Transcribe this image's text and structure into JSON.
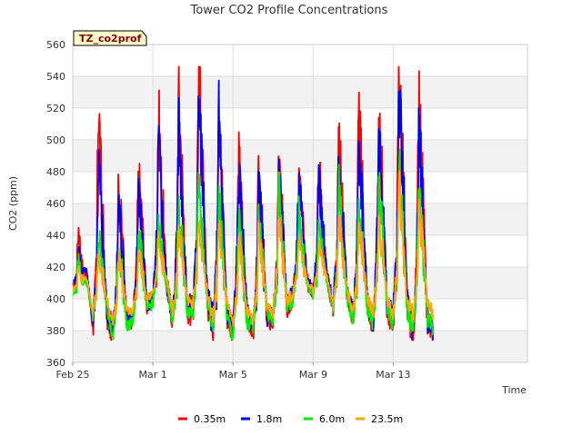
{
  "chart_data": {
    "type": "line",
    "title": "Tower CO2 Profile Concentrations",
    "xlabel": "Time",
    "ylabel": "CO2 (ppm)",
    "badge": "TZ_co2prof",
    "ylim": [
      360,
      560
    ],
    "y_ticks": [
      360,
      380,
      400,
      420,
      440,
      460,
      480,
      500,
      520,
      540,
      560
    ],
    "xlim": [
      0,
      22.7
    ],
    "x_ticks": [
      {
        "value": 0,
        "label": "Feb 25"
      },
      {
        "value": 4,
        "label": "Mar 1"
      },
      {
        "value": 8,
        "label": "Mar 5"
      },
      {
        "value": 12,
        "label": "Mar 9"
      },
      {
        "value": 16,
        "label": "Mar 13"
      }
    ],
    "day_offsets": [
      0,
      1,
      2,
      3,
      4,
      5,
      6,
      7,
      8,
      9,
      10,
      11,
      12,
      13,
      14,
      15,
      16,
      17
    ],
    "series": [
      {
        "name": "0.35m",
        "color": "#ff0000",
        "base": [
          407,
          382,
          378,
          387,
          400,
          386,
          393,
          383,
          382,
          378,
          386,
          403,
          405,
          395,
          388,
          383,
          387,
          378
        ],
        "peak": [
          445,
          525,
          468,
          476,
          514,
          527,
          546,
          530,
          488,
          478,
          486,
          480,
          488,
          498,
          510,
          505,
          542,
          520
        ],
        "hump": [
          420,
          452,
          440,
          450,
          462,
          478,
          486,
          464,
          450,
          442,
          448,
          452,
          450,
          462,
          470,
          478,
          486,
          470
        ]
      },
      {
        "name": "1.8m",
        "color": "#0000ff",
        "base": [
          410,
          384,
          380,
          388,
          401,
          388,
          395,
          386,
          384,
          381,
          388,
          404,
          406,
          397,
          390,
          386,
          389,
          380
        ],
        "peak": [
          432,
          486,
          462,
          466,
          500,
          506,
          537,
          516,
          478,
          470,
          478,
          472,
          478,
          488,
          496,
          498,
          528,
          505
        ],
        "hump": [
          418,
          446,
          436,
          445,
          456,
          470,
          480,
          458,
          446,
          438,
          444,
          448,
          446,
          456,
          462,
          470,
          480,
          464
        ]
      },
      {
        "name": "6.0m",
        "color": "#00ee00",
        "base": [
          402,
          388,
          374,
          385,
          398,
          385,
          392,
          380,
          376,
          383,
          387,
          401,
          403,
          393,
          387,
          385,
          385,
          380
        ],
        "peak": [
          425,
          440,
          432,
          440,
          448,
          452,
          470,
          462,
          448,
          452,
          470,
          455,
          452,
          470,
          462,
          470,
          478,
          465
        ],
        "hump": [
          412,
          422,
          418,
          424,
          430,
          436,
          442,
          436,
          426,
          428,
          436,
          432,
          430,
          440,
          436,
          442,
          450,
          440
        ]
      },
      {
        "name": "23.5m",
        "color": "#ffa500",
        "base": [
          405,
          392,
          384,
          392,
          403,
          392,
          397,
          388,
          384,
          387,
          390,
          404,
          405,
          397,
          392,
          392,
          390,
          390
        ],
        "peak": [
          420,
          428,
          424,
          428,
          440,
          442,
          448,
          444,
          436,
          440,
          452,
          440,
          436,
          448,
          444,
          446,
          470,
          452
        ],
        "hump": [
          412,
          418,
          414,
          420,
          424,
          428,
          432,
          428,
          422,
          424,
          432,
          426,
          424,
          432,
          430,
          432,
          442,
          436
        ]
      }
    ]
  }
}
